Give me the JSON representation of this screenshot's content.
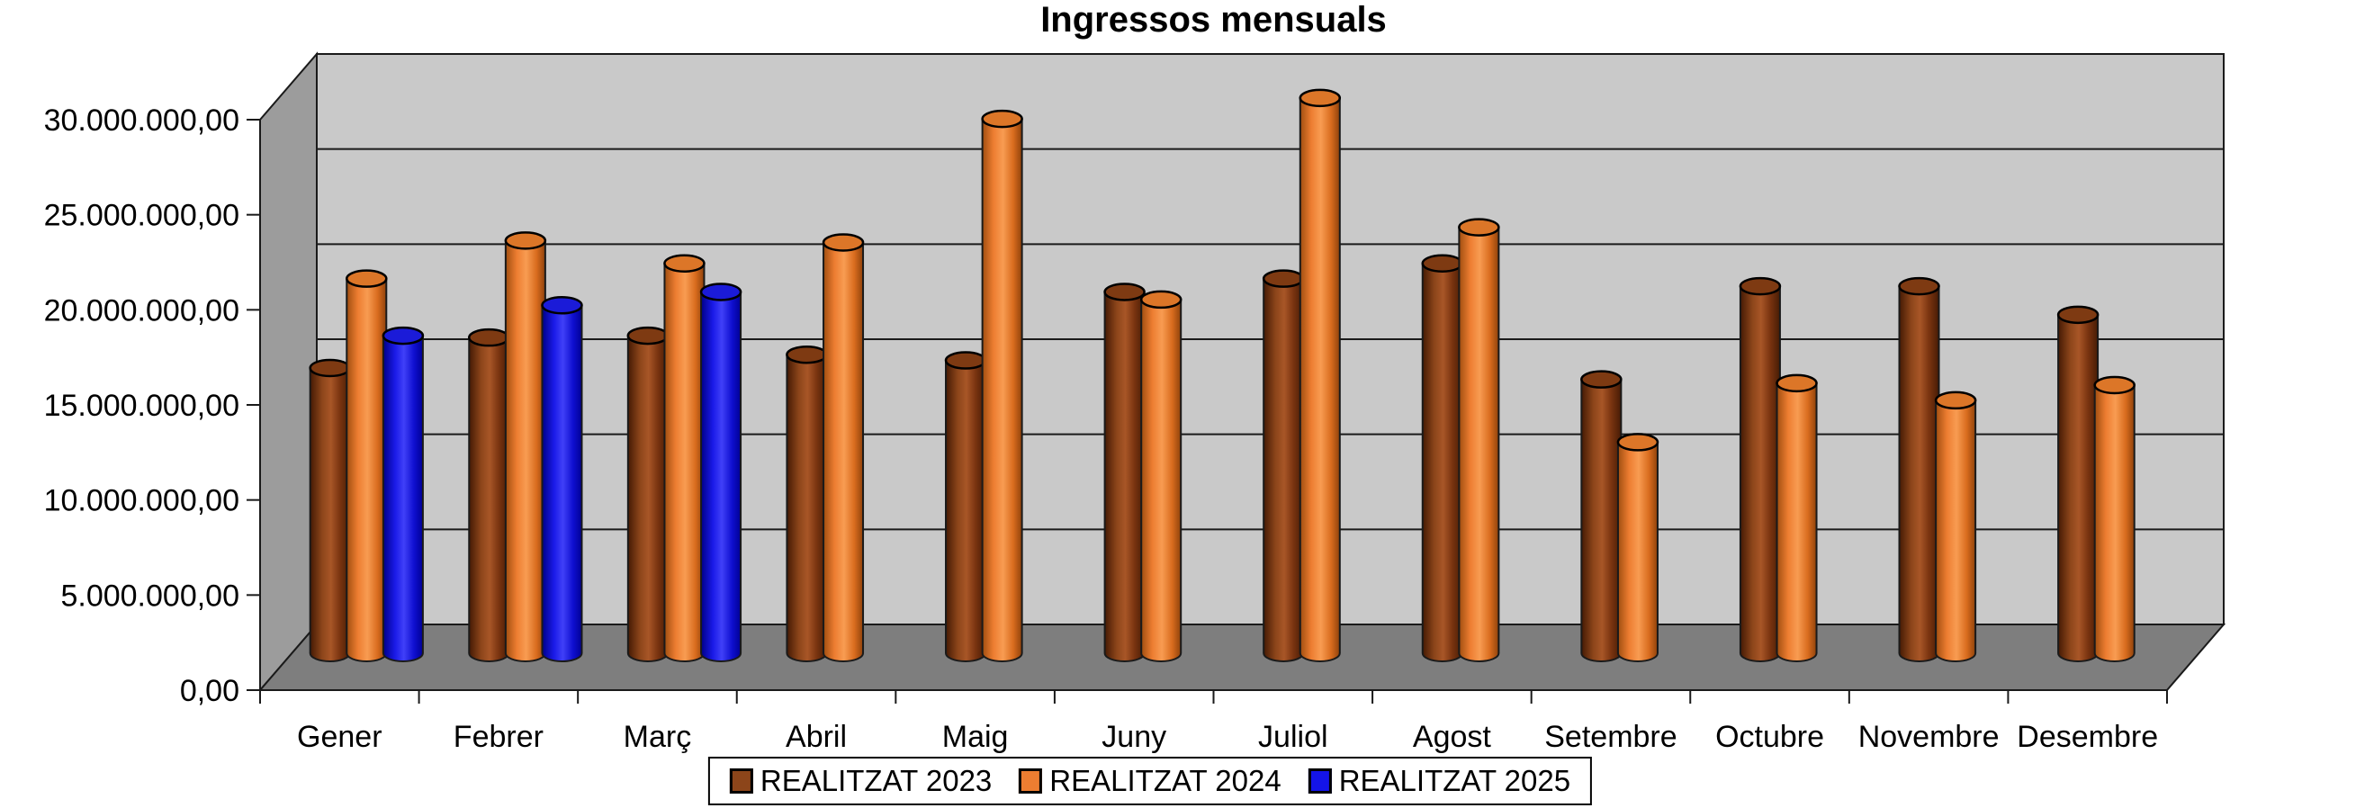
{
  "chart_data": {
    "type": "bar",
    "subtype": "3d-cylinder",
    "title": "Ingressos mensuals",
    "categories": [
      "Gener",
      "Febrer",
      "Març",
      "Abril",
      "Maig",
      "Juny",
      "Juliol",
      "Agost",
      "Setembre",
      "Octubre",
      "Novembre",
      "Desembre"
    ],
    "series": [
      {
        "name": "REALITZAT 2023",
        "color": "#8C451A",
        "values": [
          15000000,
          16600000,
          16700000,
          15700000,
          15400000,
          19000000,
          19700000,
          20500000,
          14400000,
          19300000,
          19300000,
          17800000
        ]
      },
      {
        "name": "REALITZAT 2024",
        "color": "#ED7D31",
        "values": [
          19700000,
          21700000,
          20500000,
          21600000,
          28100000,
          18600000,
          29200000,
          22400000,
          11100000,
          14200000,
          13300000,
          14100000
        ]
      },
      {
        "name": "REALITZAT 2025",
        "color": "#1414E8",
        "values": [
          16700000,
          18300000,
          19000000,
          null,
          null,
          null,
          null,
          null,
          null,
          null,
          null,
          null
        ]
      }
    ],
    "y_tick_labels": [
      "0,00",
      "5.000.000,00",
      "10.000.000,00",
      "15.000.000,00",
      "20.000.000,00",
      "25.000.000,00",
      "30.000.000,00"
    ],
    "ylim": [
      0,
      30000000
    ],
    "xlabel": "",
    "ylabel": "",
    "grid": true,
    "legend_position": "bottom",
    "wall_color": "#C9C9C9",
    "side_wall_color": "#9C9C9C",
    "floor_color": "#7E7E7E",
    "line_color": "#1A1A1A"
  }
}
